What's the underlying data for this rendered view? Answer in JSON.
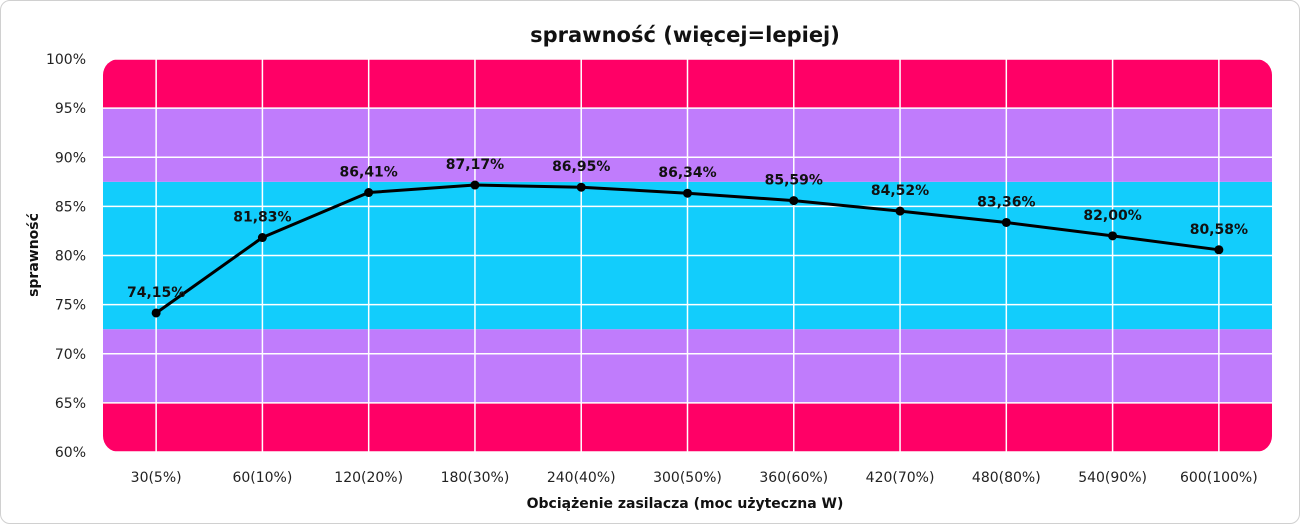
{
  "chart_data": {
    "type": "line",
    "title": "sprawność (więcej=lepiej)",
    "xlabel": "Obciążenie zasilacza (moc użyteczna W)",
    "ylabel": "sprawność",
    "categories": [
      "30(5%)",
      "60(10%)",
      "120(20%)",
      "180(30%)",
      "240(40%)",
      "300(50%)",
      "360(60%)",
      "420(70%)",
      "480(80%)",
      "540(90%)",
      "600(100%)"
    ],
    "values": [
      74.15,
      81.83,
      86.41,
      87.17,
      86.95,
      86.34,
      85.59,
      84.52,
      83.36,
      82.0,
      80.58
    ],
    "data_labels": [
      "74,15%",
      "81,83%",
      "86,41%",
      "87,17%",
      "86,95%",
      "86,34%",
      "85,59%",
      "84,52%",
      "83,36%",
      "82,00%",
      "80,58%"
    ],
    "ylim": [
      60,
      100
    ],
    "yticks": [
      60,
      65,
      70,
      75,
      80,
      85,
      90,
      95,
      100
    ],
    "ytick_labels": [
      "60%",
      "65%",
      "70%",
      "75%",
      "80%",
      "85%",
      "90%",
      "95%",
      "100%"
    ],
    "grid": true,
    "legend": "none",
    "bands": [
      {
        "from": 60,
        "to": 65,
        "color": "#ff0066"
      },
      {
        "from": 65,
        "to": 72.5,
        "color": "#c07cfc"
      },
      {
        "from": 72.5,
        "to": 87.5,
        "color": "#12cdfc"
      },
      {
        "from": 87.5,
        "to": 95,
        "color": "#c07cfc"
      },
      {
        "from": 95,
        "to": 100,
        "color": "#ff0066"
      }
    ],
    "line_color": "#000000"
  }
}
